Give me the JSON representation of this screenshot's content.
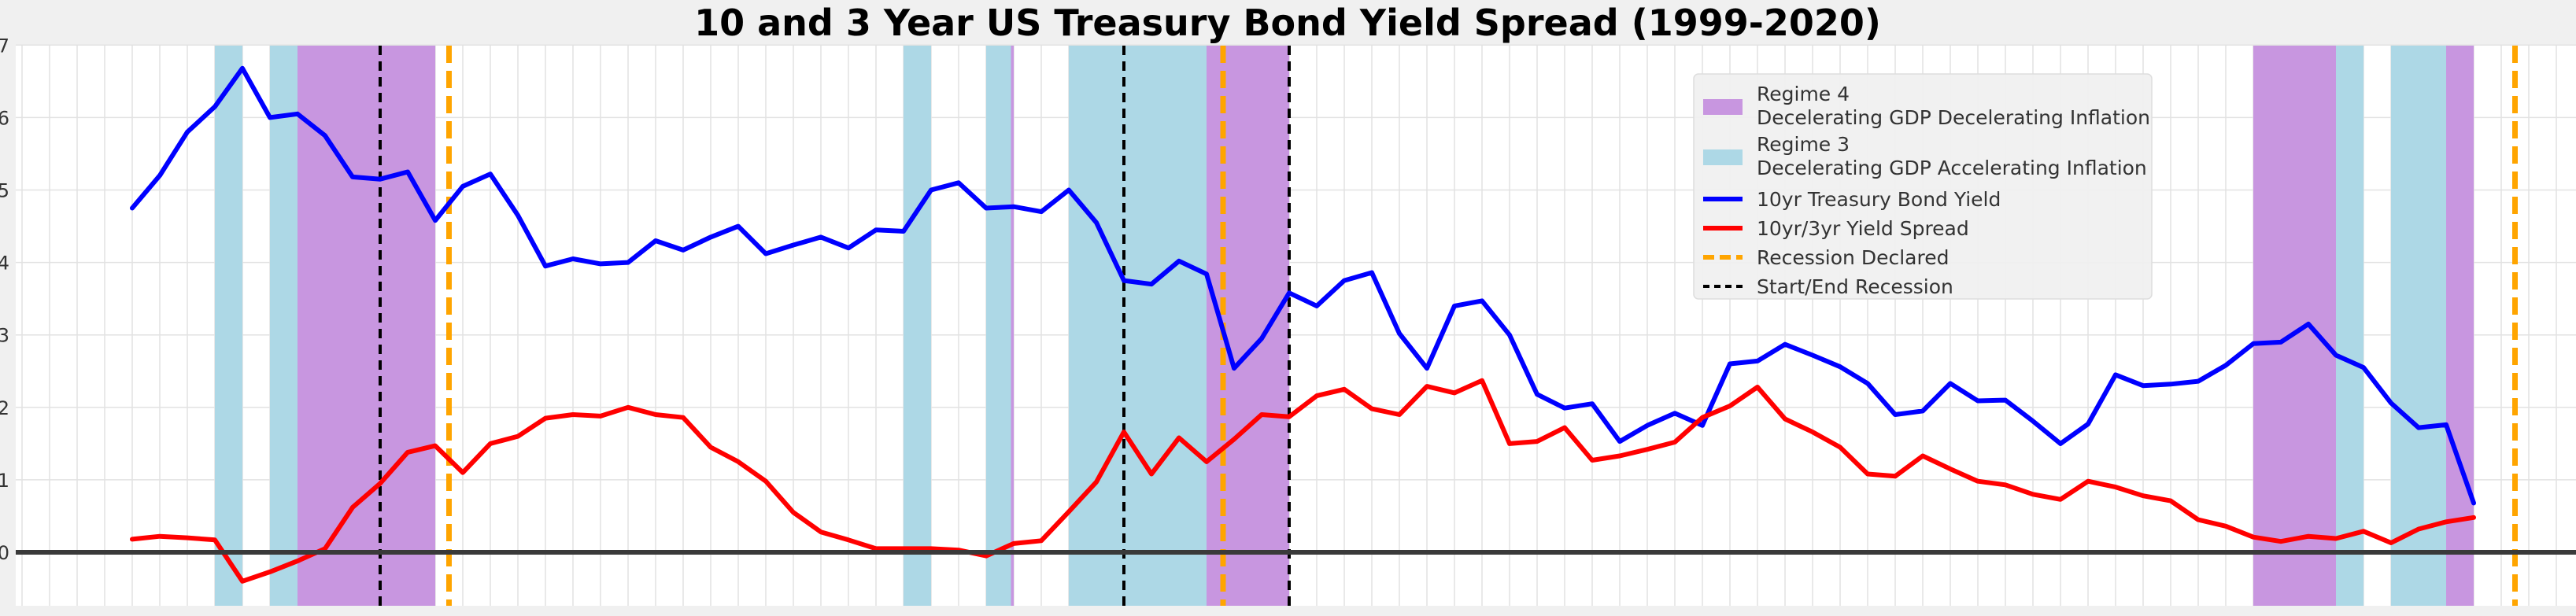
{
  "chart_data": {
    "type": "line",
    "title": "10 and 3 Year US Treasury Bond Yield Spread (1999-2020)",
    "xlabel": "",
    "ylabel": "",
    "ylim": [
      -0.7,
      7.0
    ],
    "yticks": [
      0,
      1,
      2,
      3,
      4,
      5,
      6,
      7
    ],
    "grid": true,
    "legend_position": "top-right",
    "series": [
      {
        "name": "10yr Treasury Bond Yield",
        "color": "#0000ff",
        "values": [
          4.75,
          5.2,
          5.8,
          6.15,
          6.68,
          6.0,
          6.05,
          5.75,
          5.18,
          5.15,
          5.25,
          4.58,
          5.05,
          5.22,
          4.65,
          3.95,
          4.05,
          3.98,
          4.0,
          4.3,
          4.17,
          4.35,
          4.5,
          4.12,
          4.24,
          4.35,
          4.2,
          4.45,
          4.43,
          5.0,
          5.1,
          4.75,
          4.77,
          4.7,
          5.0,
          4.55,
          3.75,
          3.7,
          4.02,
          3.84,
          2.54,
          2.95,
          3.58,
          3.4,
          3.75,
          3.86,
          3.02,
          2.54,
          3.4,
          3.47,
          3.0,
          2.18,
          1.99,
          2.05,
          1.53,
          1.75,
          1.92,
          1.75,
          2.6,
          2.64,
          2.87,
          2.72,
          2.56,
          2.33,
          1.9,
          1.95,
          2.33,
          2.09,
          2.1,
          1.81,
          1.5,
          1.77,
          2.45,
          2.3,
          2.32,
          2.36,
          2.58,
          2.88,
          2.9,
          3.15,
          2.72,
          2.55,
          2.06,
          1.72,
          1.76,
          0.68
        ]
      },
      {
        "name": "10yr/3yr Yield Spread",
        "color": "#ff0000",
        "values": [
          0.18,
          0.22,
          0.2,
          0.17,
          -0.4,
          -0.27,
          -0.12,
          0.05,
          0.62,
          0.95,
          1.38,
          1.47,
          1.1,
          1.5,
          1.6,
          1.85,
          1.9,
          1.88,
          2.0,
          1.9,
          1.86,
          1.45,
          1.25,
          0.98,
          0.55,
          0.28,
          0.17,
          0.05,
          0.05,
          0.05,
          0.03,
          -0.05,
          0.12,
          0.16,
          0.56,
          0.97,
          1.66,
          1.08,
          1.58,
          1.25,
          1.56,
          1.9,
          1.87,
          2.16,
          2.25,
          1.98,
          1.9,
          2.29,
          2.2,
          2.37,
          1.5,
          1.53,
          1.72,
          1.27,
          1.33,
          1.42,
          1.52,
          1.86,
          2.02,
          2.28,
          1.84,
          1.66,
          1.45,
          1.08,
          1.05,
          1.33,
          1.15,
          0.98,
          0.93,
          0.8,
          0.73,
          0.98,
          0.9,
          0.78,
          0.71,
          0.45,
          0.36,
          0.21,
          0.15,
          0.22,
          0.19,
          0.29,
          0.13,
          0.32,
          0.42,
          0.48
        ]
      }
    ],
    "regimes": [
      {
        "name": "Regime 4",
        "description": "Decelerating GDP Decelerating Inflation",
        "color": "#c896e0",
        "spans": [
          [
            6,
            11
          ],
          [
            31,
            32
          ],
          [
            39,
            42
          ],
          [
            77,
            80
          ],
          [
            84,
            85
          ]
        ]
      },
      {
        "name": "Regime 3",
        "description": "Decelerating GDP Accelerating Inflation",
        "color": "#add8e6",
        "spans": [
          [
            3,
            4
          ],
          [
            5,
            6
          ],
          [
            28,
            29
          ],
          [
            31,
            31.9
          ],
          [
            34,
            39
          ],
          [
            80,
            81
          ],
          [
            82,
            84
          ]
        ]
      }
    ],
    "recession_declared": {
      "name": "Recession Declared",
      "color": "#ffa500",
      "positions": [
        11.5,
        39.6,
        86.5
      ]
    },
    "recession_start_end": {
      "name": "Start/End Recession",
      "color": "#000000",
      "positions": [
        9,
        36,
        42
      ]
    },
    "zero_line": 0
  }
}
